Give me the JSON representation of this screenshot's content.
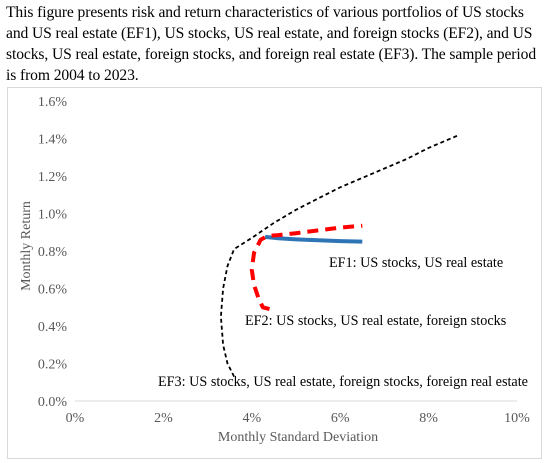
{
  "caption": "This figure presents risk and return characteristics of various portfolios of US stocks and US real estate (EF1), US stocks, US real estate, and foreign stocks (EF2), and US stocks, US real estate, foreign stocks, and foreign real estate (EF3). The sample period is from 2004 to 2023.",
  "chart_data": {
    "type": "line",
    "title": "",
    "xlabel": "Monthly Standard Deviation",
    "ylabel": "Monthly Return",
    "xlim": [
      0,
      10
    ],
    "ylim": [
      0,
      1.6
    ],
    "x_ticks": [
      0,
      2,
      4,
      6,
      8,
      10
    ],
    "y_ticks": [
      0,
      0.2,
      0.4,
      0.6,
      0.8,
      1.0,
      1.2,
      1.4,
      1.6
    ],
    "x_tick_labels": [
      "0%",
      "2%",
      "4%",
      "6%",
      "8%",
      "10%"
    ],
    "y_tick_labels": [
      "0.0%",
      "0.2%",
      "0.4%",
      "0.6%",
      "0.8%",
      "1.0%",
      "1.2%",
      "1.4%",
      "1.6%"
    ],
    "grid": false,
    "legend": "none",
    "series": [
      {
        "annotation": "EF1: US stocks, US real estate",
        "color": "#2e75b6",
        "style": "solid",
        "points": [
          [
            4.3,
            0.875
          ],
          [
            4.6,
            0.868
          ],
          [
            5.0,
            0.862
          ],
          [
            5.5,
            0.857
          ],
          [
            6.0,
            0.853
          ],
          [
            6.5,
            0.85
          ]
        ]
      },
      {
        "annotation": "EF2: US stocks, US real estate, foreign stocks",
        "color": "#ff0000",
        "style": "dashed",
        "points": [
          [
            4.4,
            0.49
          ],
          [
            4.25,
            0.5
          ],
          [
            4.15,
            0.55
          ],
          [
            4.05,
            0.62
          ],
          [
            4.0,
            0.7
          ],
          [
            4.05,
            0.79
          ],
          [
            4.2,
            0.86
          ],
          [
            4.35,
            0.88
          ],
          [
            4.6,
            0.885
          ],
          [
            5.0,
            0.895
          ],
          [
            5.5,
            0.91
          ],
          [
            6.0,
            0.925
          ],
          [
            6.5,
            0.935
          ]
        ]
      },
      {
        "annotation": "EF3: US stocks, US real estate, foreign stocks, foreign real estate",
        "color": "#000000",
        "style": "dotted",
        "points": [
          [
            3.6,
            0.13
          ],
          [
            3.45,
            0.2
          ],
          [
            3.35,
            0.3
          ],
          [
            3.3,
            0.45
          ],
          [
            3.35,
            0.6
          ],
          [
            3.45,
            0.72
          ],
          [
            3.6,
            0.81
          ],
          [
            4.0,
            0.87
          ],
          [
            4.5,
            0.95
          ],
          [
            5.0,
            1.02
          ],
          [
            5.5,
            1.08
          ],
          [
            6.0,
            1.14
          ],
          [
            6.5,
            1.19
          ],
          [
            7.0,
            1.24
          ],
          [
            7.5,
            1.29
          ],
          [
            8.0,
            1.35
          ],
          [
            8.7,
            1.42
          ]
        ]
      }
    ]
  }
}
